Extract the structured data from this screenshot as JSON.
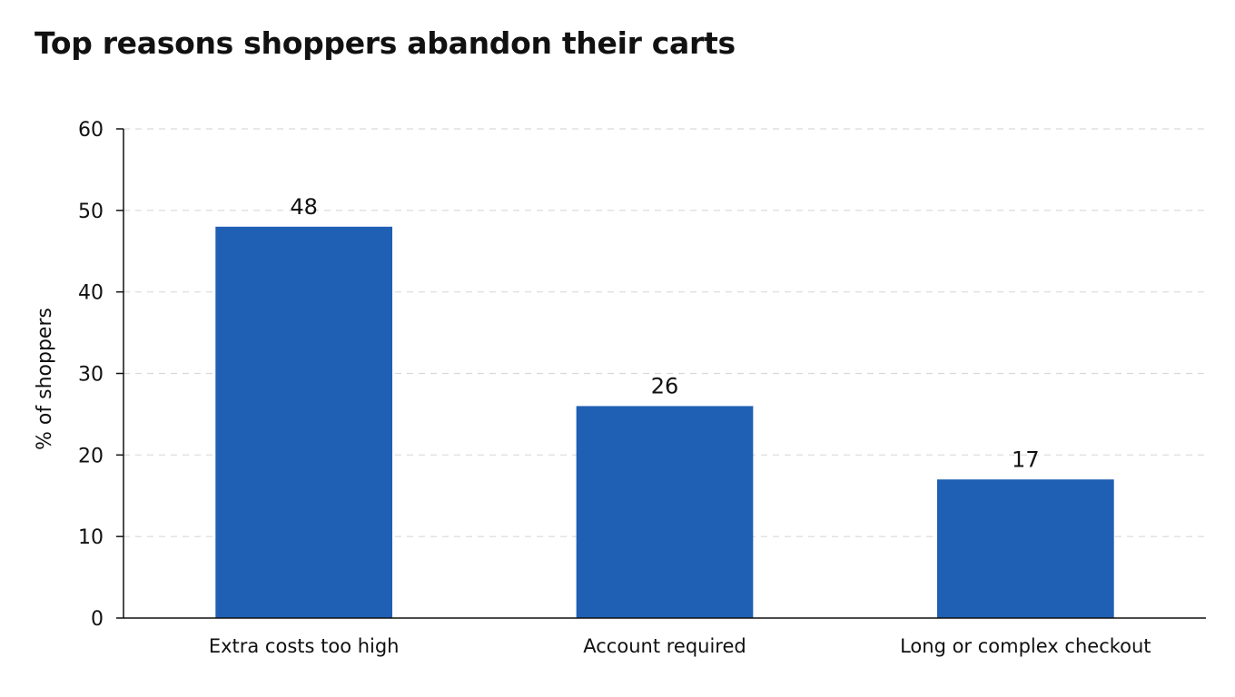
{
  "chart_data": {
    "type": "bar",
    "title": "Top reasons shoppers abandon their carts",
    "xlabel": "",
    "ylabel": "% of shoppers",
    "categories": [
      "Extra costs too high",
      "Account required",
      "Long or complex checkout"
    ],
    "values": [
      48,
      26,
      17
    ],
    "data_labels": [
      "48",
      "26",
      "17"
    ],
    "ylim": [
      0,
      60
    ],
    "yticks": [
      0,
      10,
      20,
      30,
      40,
      50,
      60
    ],
    "ytick_labels": [
      "0",
      "10",
      "20",
      "30",
      "40",
      "50",
      "60"
    ],
    "grid": true,
    "grid_style": "dashed",
    "legend": "none",
    "bar_color": "#1f5fb4",
    "grid_color": "#d9d9d9",
    "axis_color": "#111111"
  }
}
